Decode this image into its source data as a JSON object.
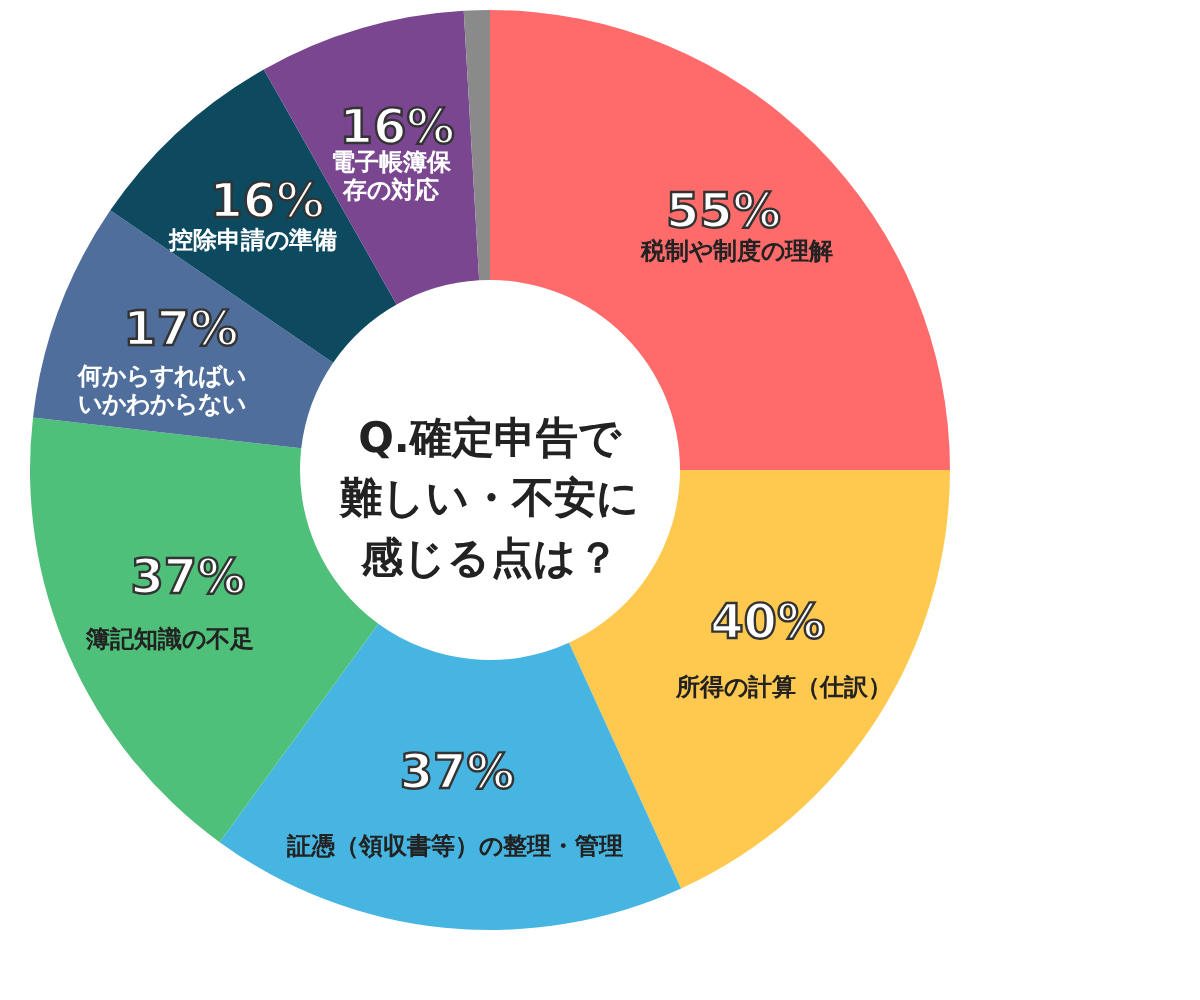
{
  "chart_data": {
    "type": "donut",
    "title": "Q.確定申告で難しい・不安に感じる点は？",
    "categories": [
      "税制や制度の理解",
      "所得の計算（仕訳）",
      "証憑（領収書等）の整理・管理",
      "簿記知識の不足",
      "何からすればいいかわからない",
      "控除申請の準備",
      "電子帳簿保存の対応",
      null
    ],
    "values": [
      55,
      40,
      37,
      37,
      17,
      16,
      16,
      2
    ],
    "value_labels": [
      "55%",
      "40%",
      "37%",
      "37%",
      "17%",
      "16%",
      "16%",
      null
    ],
    "colors": [
      "#ff6b6b",
      "#ffc84f",
      "#47b5e2",
      "#4fc07a",
      "#506e9c",
      "#0d4a60",
      "#7a4690",
      "#8a8a8a"
    ],
    "legend": false
  }
}
